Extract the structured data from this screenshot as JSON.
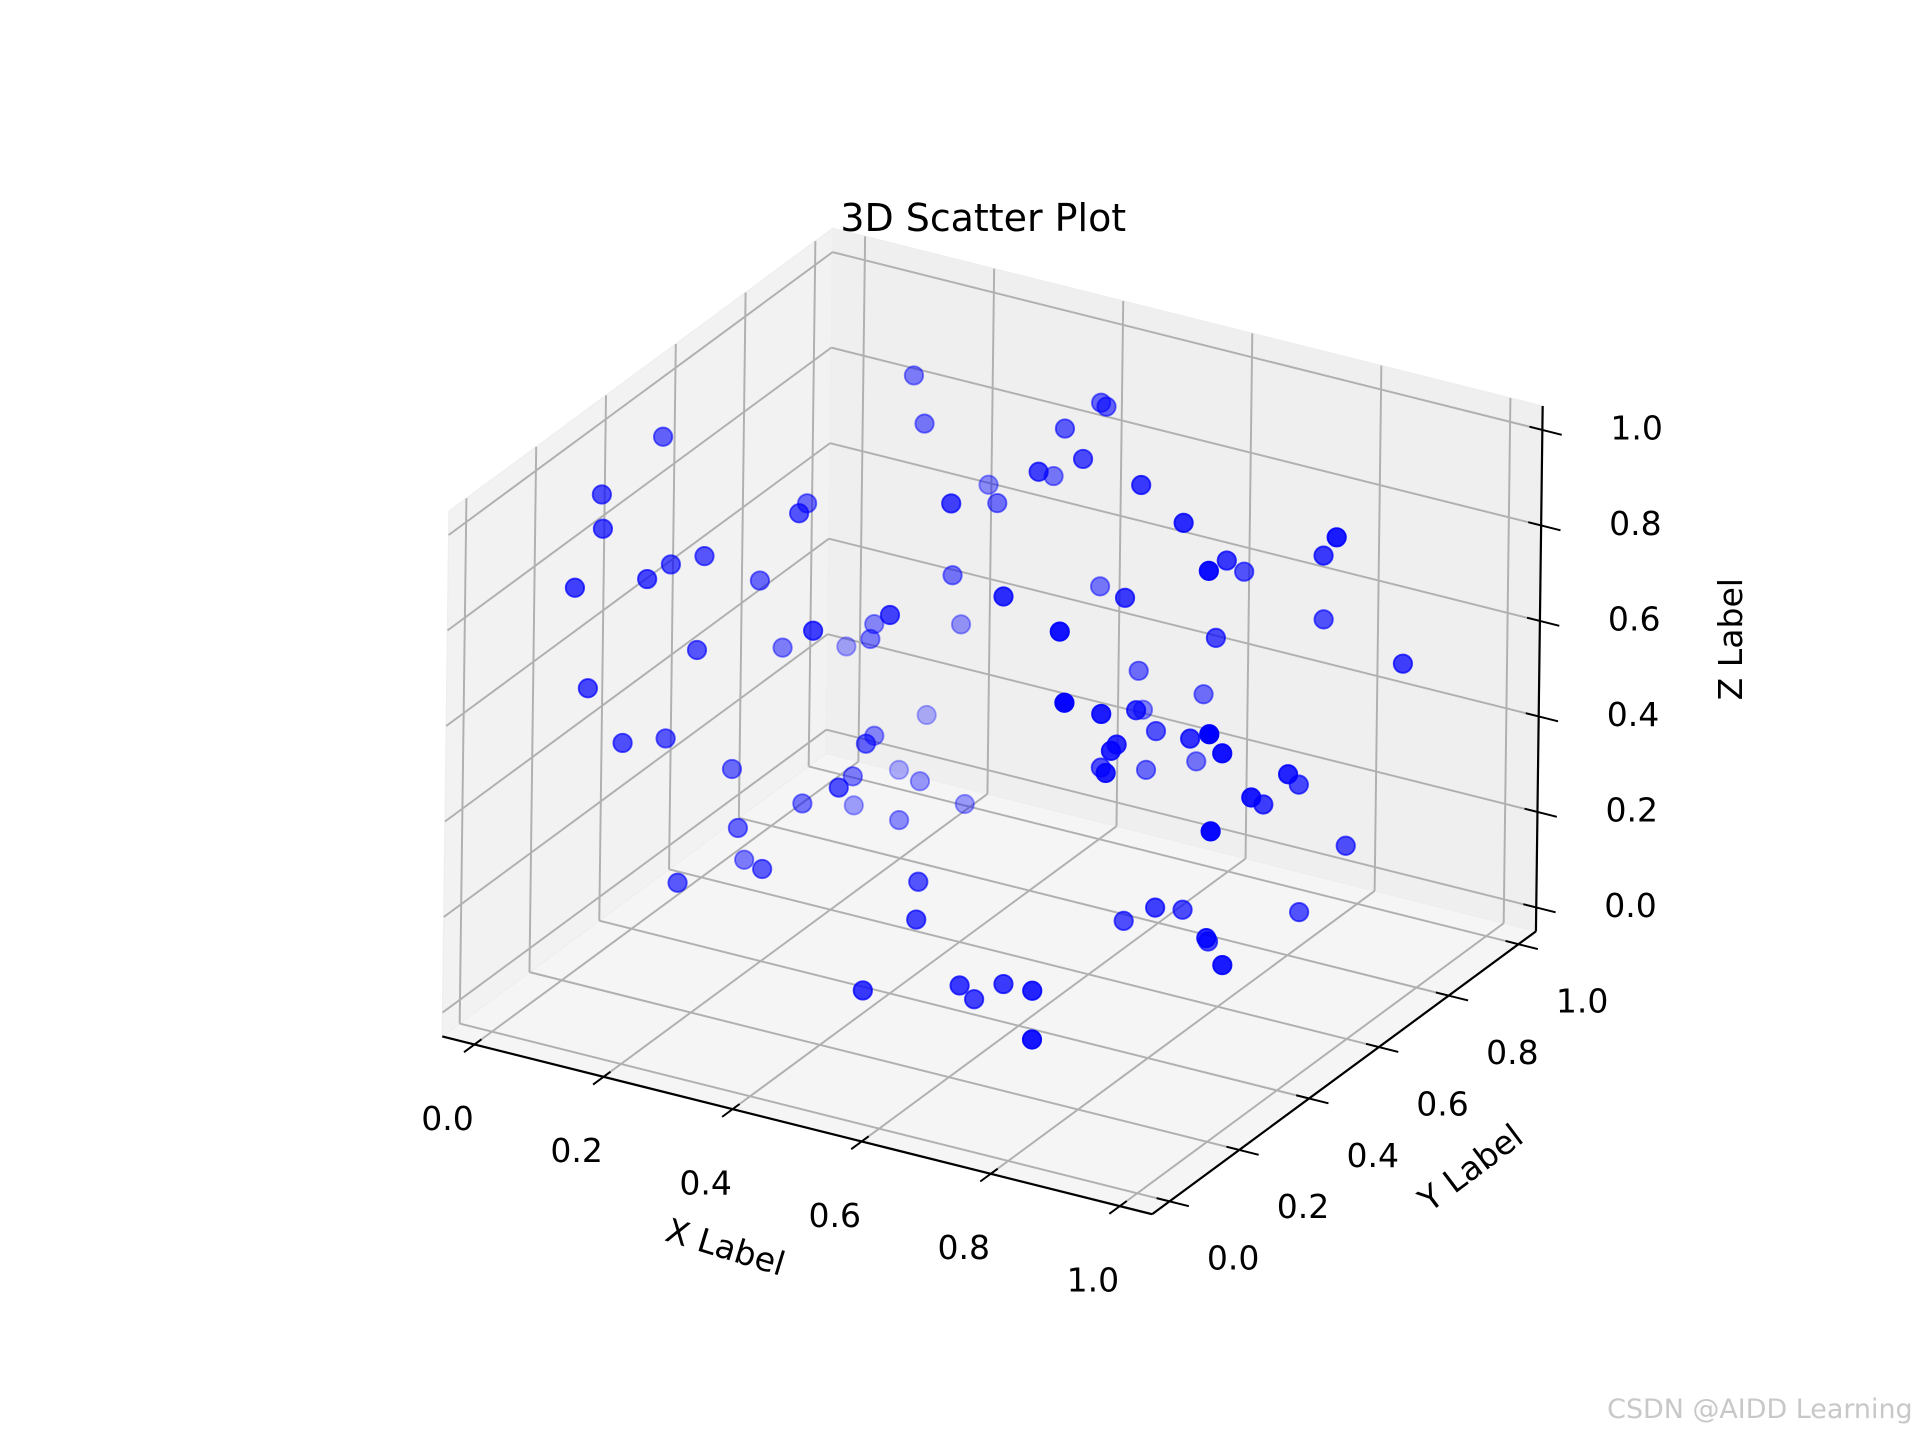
{
  "chart_data": {
    "type": "scatter3d",
    "title": "3D Scatter Plot",
    "xlabel": "X Label",
    "ylabel": "Y Label",
    "zlabel": "Z Label",
    "color": "#0000ff",
    "grid": true,
    "depthshade": true,
    "xlim": [
      -0.05,
      1.05
    ],
    "ylim": [
      -0.05,
      1.05
    ],
    "zlim": [
      -0.05,
      1.05
    ],
    "xticks": [
      {
        "value": 0,
        "label": "0.0"
      },
      0.2,
      0.4,
      0.6,
      0.8,
      {
        "value": 1,
        "label": "1.0"
      }
    ],
    "yticks": [
      {
        "value": 0,
        "label": "0.0"
      },
      0.2,
      0.4,
      0.6,
      0.8,
      {
        "value": 1,
        "label": "1.0"
      }
    ],
    "zticks": [
      {
        "value": 0,
        "label": "0.0"
      },
      0.2,
      0.4,
      0.6,
      0.8,
      {
        "value": 1,
        "label": "1.0"
      }
    ],
    "x": [
      0.185,
      0.229,
      0.023,
      0.031,
      0.06,
      0.156,
      0.224,
      0.132,
      0.107,
      0.124,
      0.066,
      0.138,
      0.149,
      0.088,
      0.116,
      0.129,
      0.328,
      0.121,
      0.086,
      0.203,
      0.182,
      0.393,
      0.448,
      0.467,
      0.446,
      0.528,
      0.513,
      0.376,
      0.249,
      0.343,
      0.432,
      0.645,
      0.738,
      0.948,
      0.848,
      0.752,
      0.858,
      0.699,
      0.302,
      0.568,
      0.45,
      0.649,
      0.236,
      0.709,
      0.71,
      0.796,
      0.946,
      0.538,
      0.612,
      0.771,
      0.748,
      0.695,
      0.492,
      0.646,
      0.158,
      0.211,
      0.305,
      0.779,
      0.942,
      0.909,
      0.719,
      0.737,
      0.602,
      0.615,
      0.756,
      0.578,
      0.931,
      0.841,
      0.928,
      0.84,
      0.152,
      0.143,
      0.229,
      0.232,
      0.344,
      0.154,
      0.208,
      0.272,
      0.251,
      0.189,
      0.946,
      0.888,
      0.146,
      0.254,
      0.177,
      0.442,
      0.755,
      0.744,
      0.68,
      0.493,
      0.888,
      0.784,
      0.844,
      0.94,
      0.492,
      0.588,
      0.629,
      0.727,
      0.584,
      0.781
    ],
    "y": [
      0.85,
      0.8,
      0.43,
      0.24,
      0.19,
      0.6,
      0.45,
      0.35,
      0.3,
      0.2,
      0.1,
      0.5,
      0.3,
      0.1,
      0.15,
      0.25,
      0.3,
      0.6,
      0.85,
      0.7,
      0.75,
      0.4,
      0.9,
      0.88,
      0.8,
      0.7,
      0.6,
      0.9,
      0.95,
      0.8,
      0.5,
      0.65,
      0.6,
      0.65,
      0.8,
      0.7,
      0.45,
      0.85,
      0.75,
      0.4,
      0.9,
      0.6,
      0.9,
      0.3,
      0.75,
      0.9,
      0.85,
      0.85,
      0.9,
      0.2,
      0.35,
      0.55,
      0.95,
      0.7,
      0.95,
      0.7,
      0.5,
      0.55,
      0.3,
      0.4,
      0.45,
      0.4,
      0.9,
      0.6,
      0.35,
      0.8,
      0.55,
      0.75,
      0.45,
      0.65,
      0.4,
      0.9,
      0.8,
      0.6,
      0.35,
      0.75,
      0.5,
      0.85,
      0.7,
      0.35,
      0.3,
      0.8,
      0.45,
      0.3,
      0.2,
      0.4,
      0.5,
      0.6,
      0.55,
      0.3,
      0.4,
      0.6,
      0.75,
      0.35,
      0.15,
      0.25,
      0.3,
      0.2,
      0.3,
      0.1
    ],
    "z": [
      0.929,
      0.87,
      0.972,
      0.956,
      0.921,
      0.786,
      0.869,
      0.802,
      0.803,
      0.832,
      0.848,
      0.672,
      0.638,
      0.645,
      0.513,
      0.473,
      0.739,
      0.472,
      0.328,
      0.464,
      0.461,
      0.74,
      0.934,
      0.943,
      0.933,
      0.951,
      0.973,
      0.756,
      0.668,
      0.742,
      0.933,
      0.963,
      0.942,
      0.956,
      0.803,
      0.814,
      0.963,
      0.692,
      0.604,
      0.838,
      0.55,
      0.755,
      0.398,
      0.866,
      0.611,
      0.598,
      0.583,
      0.43,
      0.379,
      0.792,
      0.68,
      0.562,
      0.279,
      0.421,
      0.155,
      0.264,
      0.387,
      0.531,
      0.73,
      0.625,
      0.552,
      0.572,
      0.235,
      0.388,
      0.559,
      0.263,
      0.508,
      0.348,
      0.512,
      0.36,
      0.336,
      0.062,
      0.121,
      0.24,
      0.389,
      0.072,
      0.229,
      0.061,
      0.101,
      0.252,
      0.528,
      0.209,
      0.117,
      0.215,
      0.214,
      0.198,
      0.196,
      0.134,
      0.116,
      0.19,
      0.231,
      0.081,
      0.082,
      0.219,
      0.122,
      0.111,
      0.101,
      0.174,
      0.054,
      0.144
    ]
  },
  "watermark": "CSDN @AIDD Learning"
}
